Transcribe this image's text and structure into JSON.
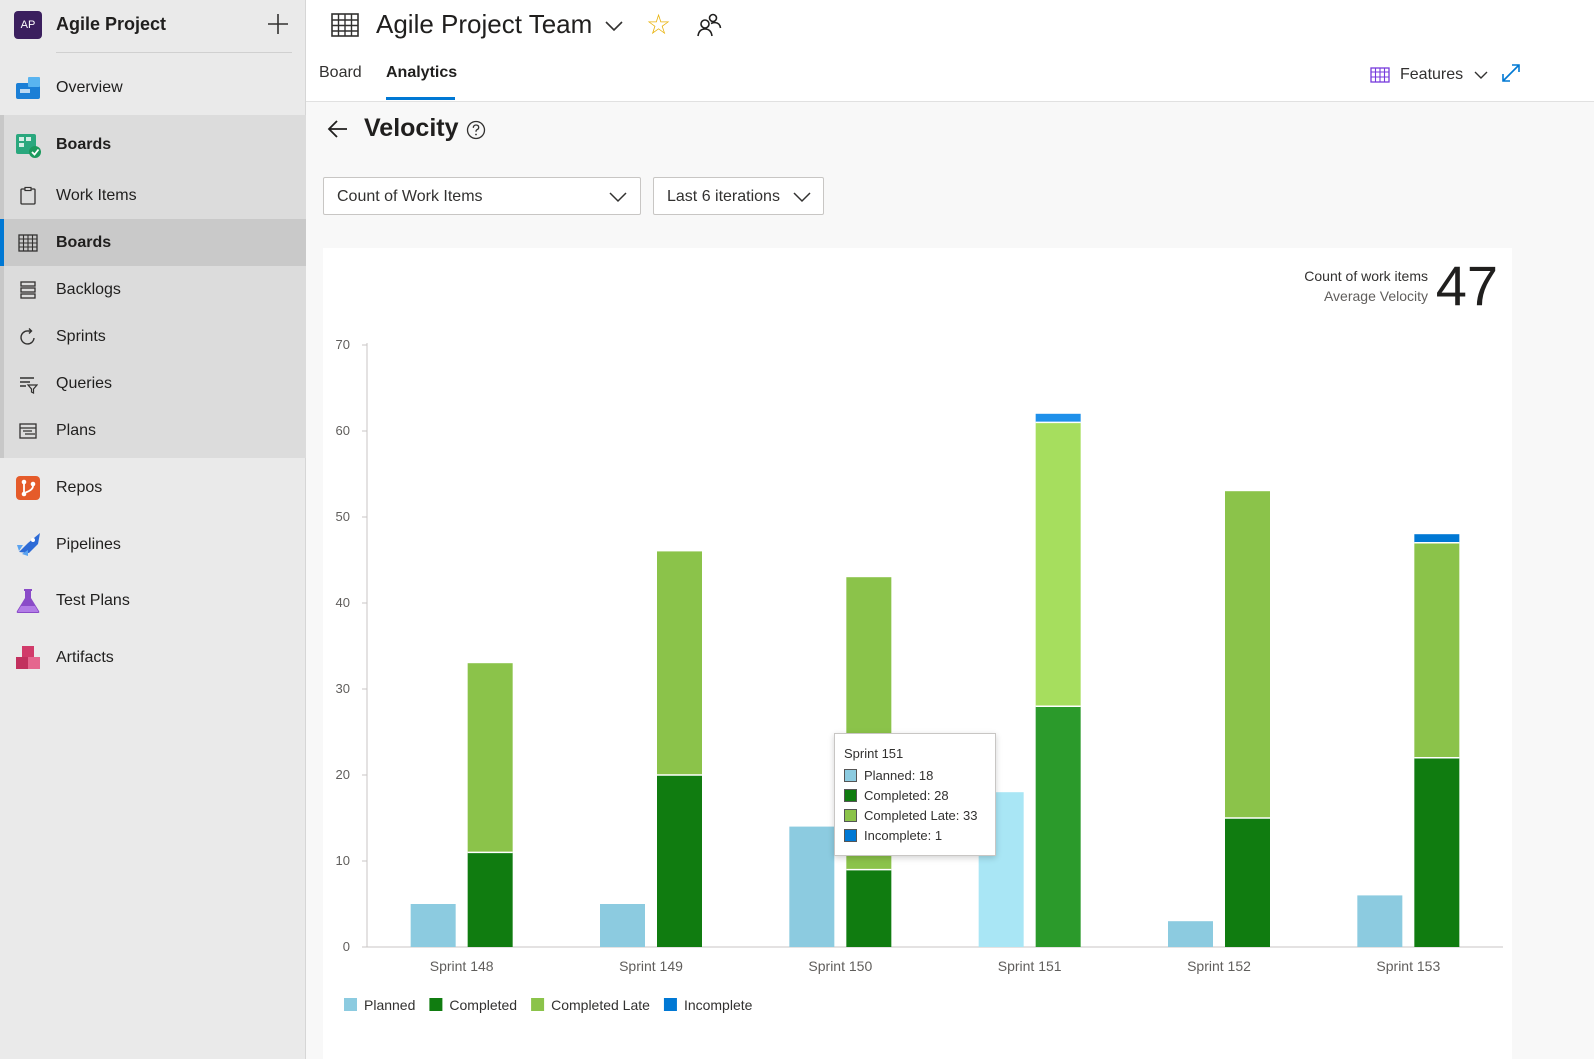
{
  "project": {
    "avatar": "AP",
    "name": "Agile Project"
  },
  "nav": {
    "overview": "Overview",
    "boards": "Boards",
    "work_items": "Work Items",
    "boards_sub": "Boards",
    "backlogs": "Backlogs",
    "sprints": "Sprints",
    "queries": "Queries",
    "plans": "Plans",
    "repos": "Repos",
    "pipelines": "Pipelines",
    "test_plans": "Test Plans",
    "artifacts": "Artifacts"
  },
  "header": {
    "team_title": "Agile Project Team",
    "tabs": [
      "Board",
      "Analytics"
    ],
    "features_label": "Features"
  },
  "page": {
    "title": "Velocity",
    "metric_dropdown": "Count of Work Items",
    "iterations_dropdown": "Last 6 iterations"
  },
  "summary": {
    "label": "Count of work items",
    "sublabel": "Average Velocity",
    "value": "47"
  },
  "tooltip": {
    "title": "Sprint 151",
    "rows": [
      "Planned: 18",
      "Completed: 28",
      "Completed Late: 33",
      "Incomplete: 1"
    ]
  },
  "colors": {
    "planned": "#8ccbe0",
    "planned_highlight": "#a9e6f5",
    "completed": "#107c10",
    "completed_highlight": "#2b9a2b",
    "completed_late": "#8bc34a",
    "completed_late_highlight": "#a6de5e",
    "incomplete": "#0078d4",
    "incomplete_highlight": "#1e90ea",
    "accent": "#0078d4",
    "star": "#e8b20b"
  },
  "chart_data": {
    "type": "bar",
    "stacked": true,
    "categories": [
      "Sprint 148",
      "Sprint 149",
      "Sprint 150",
      "Sprint 151",
      "Sprint 152",
      "Sprint 153"
    ],
    "ylim": [
      0,
      70
    ],
    "yticks": [
      0,
      10,
      20,
      30,
      40,
      50,
      60,
      70
    ],
    "highlighted_category": "Sprint 151",
    "planned": {
      "name": "Planned",
      "values": [
        5,
        5,
        14,
        18,
        3,
        6
      ]
    },
    "stack": [
      {
        "name": "Completed",
        "values": [
          11,
          20,
          9,
          28,
          15,
          22
        ]
      },
      {
        "name": "Completed Late",
        "values": [
          22,
          26,
          34,
          33,
          38,
          25
        ]
      },
      {
        "name": "Incomplete",
        "values": [
          0,
          0,
          0,
          1,
          0,
          1
        ]
      }
    ],
    "legend": [
      "Planned",
      "Completed",
      "Completed Late",
      "Incomplete"
    ],
    "legend_position": "bottom-left",
    "grid": false
  }
}
